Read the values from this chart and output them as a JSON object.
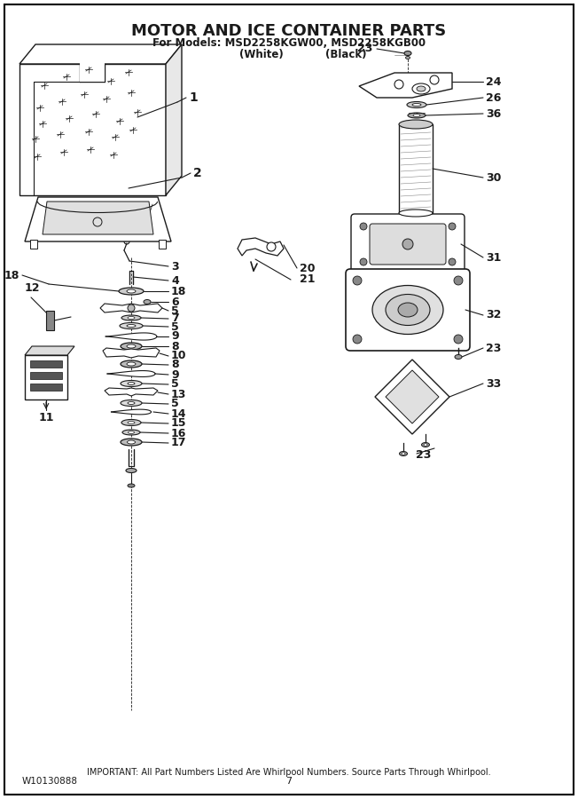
{
  "title": "MOTOR AND ICE CONTAINER PARTS",
  "subtitle1": "For Models: MSD2258KGW00, MSD2258KGB00",
  "subtitle2_white": "(White)",
  "subtitle2_black": "(Black)",
  "footer": "IMPORTANT: All Part Numbers Listed Are Whirlpool Numbers. Source Parts Through Whirlpool.",
  "doc_num": "W10130888",
  "page_num": "7",
  "bg_color": "#ffffff",
  "line_color": "#1a1a1a",
  "text_color": "#1a1a1a",
  "figsize": [
    6.52,
    9.0
  ],
  "dpi": 100
}
